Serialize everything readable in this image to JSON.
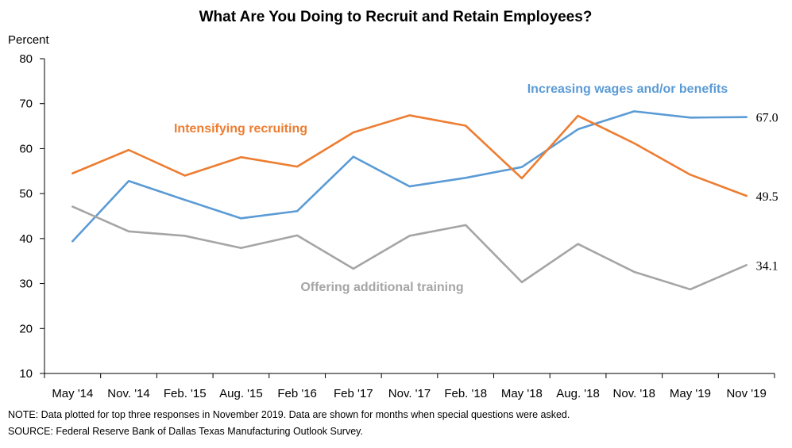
{
  "chart_data": {
    "type": "line",
    "title": "What Are You Doing to Recruit and Retain Employees?",
    "ylabel": "Percent",
    "xlabel": "",
    "ylim": [
      10,
      80
    ],
    "yticks": [
      10,
      20,
      30,
      40,
      50,
      60,
      70,
      80
    ],
    "categories": [
      "May '14",
      "Nov. '14",
      "Feb. '15",
      "Aug. '15",
      "Feb '16",
      "Feb '17",
      "Nov. '17",
      "Feb. '18",
      "May '18",
      "Aug. '18",
      "Nov. '18",
      "May '19",
      "Nov '19"
    ],
    "grid": false,
    "series": [
      {
        "name": "Increasing wages and/or benefits",
        "color": "#5B9BD5",
        "values": [
          39.4,
          52.8,
          48.6,
          44.5,
          46.1,
          58.2,
          51.6,
          53.5,
          55.9,
          64.3,
          68.3,
          66.9,
          67.0
        ],
        "end_label": "67.0"
      },
      {
        "name": "Intensifying recruiting",
        "color": "#ED7D31",
        "values": [
          54.5,
          59.7,
          54.0,
          58.1,
          56.0,
          63.6,
          67.4,
          65.1,
          53.4,
          67.3,
          61.2,
          54.2,
          49.5
        ],
        "end_label": "49.5"
      },
      {
        "name": "Offering additional training",
        "color": "#A5A5A5",
        "values": [
          47.1,
          41.6,
          40.6,
          37.9,
          40.7,
          33.3,
          40.6,
          43.0,
          30.3,
          38.8,
          32.6,
          28.7,
          34.1
        ],
        "end_label": "34.1"
      }
    ],
    "notes": {
      "note": "NOTE: Data plotted for top three responses in November 2019. Data are shown for months when special questions were asked.",
      "source": "SOURCE: Federal Reserve Bank of Dallas Texas Manufacturing Outlook Survey."
    }
  }
}
